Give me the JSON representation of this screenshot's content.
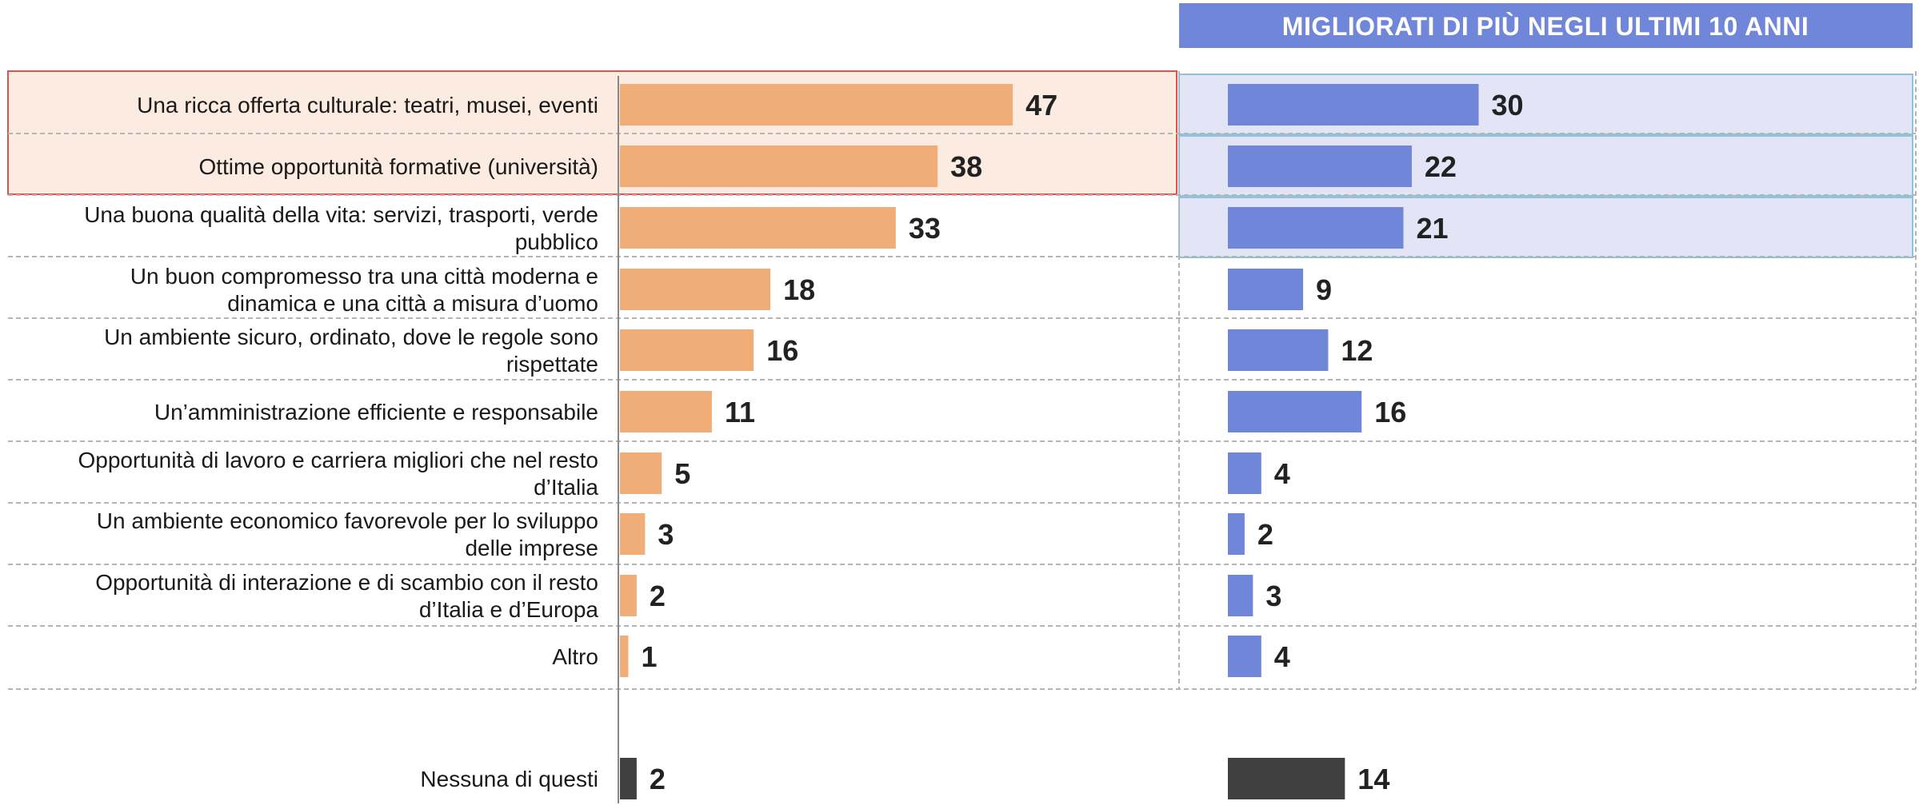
{
  "chart_data": {
    "type": "bar",
    "orientation": "horizontal",
    "categories": [
      "Una ricca offerta culturale: teatri, musei, eventi",
      "Ottime opportunità formative (università)",
      "Una buona qualità della vita: servizi, trasporti, verde pubblico",
      "Un buon compromesso tra una città moderna e dinamica e una città a misura d’uomo",
      "Un ambiente sicuro, ordinato, dove le regole sono rispettate",
      "Un’amministrazione efficiente e responsabile",
      "Opportunità di lavoro e carriera migliori che nel resto d’Italia",
      "Un ambiente economico favorevole per lo sviluppo delle imprese",
      "Opportunità di interazione e di scambio con il resto d’Italia e d’Europa",
      "Altro",
      "Nessuna di questi"
    ],
    "category_lines": [
      [
        "Una ricca offerta culturale: teatri, musei, eventi"
      ],
      [
        "Ottime opportunità formative (università)"
      ],
      [
        "Una buona qualità della vita: servizi, trasporti, verde",
        "pubblico"
      ],
      [
        "Un buon compromesso tra una città moderna e",
        "dinamica e una città a misura d’uomo"
      ],
      [
        "Un ambiente sicuro, ordinato, dove le regole sono",
        "rispettate"
      ],
      [
        "Un’amministrazione efficiente e responsabile"
      ],
      [
        "Opportunità di lavoro e carriera migliori che nel resto",
        "d’Italia"
      ],
      [
        "Un ambiente economico favorevole per lo sviluppo",
        "delle imprese"
      ],
      [
        "Opportunità di interazione e di scambio con il resto",
        "d’Italia e d’Europa"
      ],
      [
        "Altro"
      ],
      [
        "Nessuna di questi"
      ]
    ],
    "series": [
      {
        "name": "",
        "values": [
          47,
          38,
          33,
          18,
          16,
          11,
          5,
          3,
          2,
          1,
          2
        ],
        "color": "#F0AD78",
        "last_color": "#404040"
      },
      {
        "name": "MIGLIORATI DI PIÙ NEGLI ULTIMI 10 ANNI",
        "values": [
          30,
          22,
          21,
          9,
          12,
          16,
          4,
          2,
          3,
          4,
          14
        ],
        "color": "#7086D8",
        "last_color": "#404040"
      }
    ],
    "highlight_left_rows": [
      0,
      1
    ],
    "highlight_right_rows": [
      0,
      1,
      2
    ],
    "colors": {
      "left_highlight_fill": "#FCEBE1",
      "left_highlight_border": "#D9534F",
      "right_highlight_fill": "#E3E5F7",
      "right_highlight_border": "#8EC3DA",
      "header_bg": "#7086D8",
      "separator": "#b5b5b5"
    }
  }
}
